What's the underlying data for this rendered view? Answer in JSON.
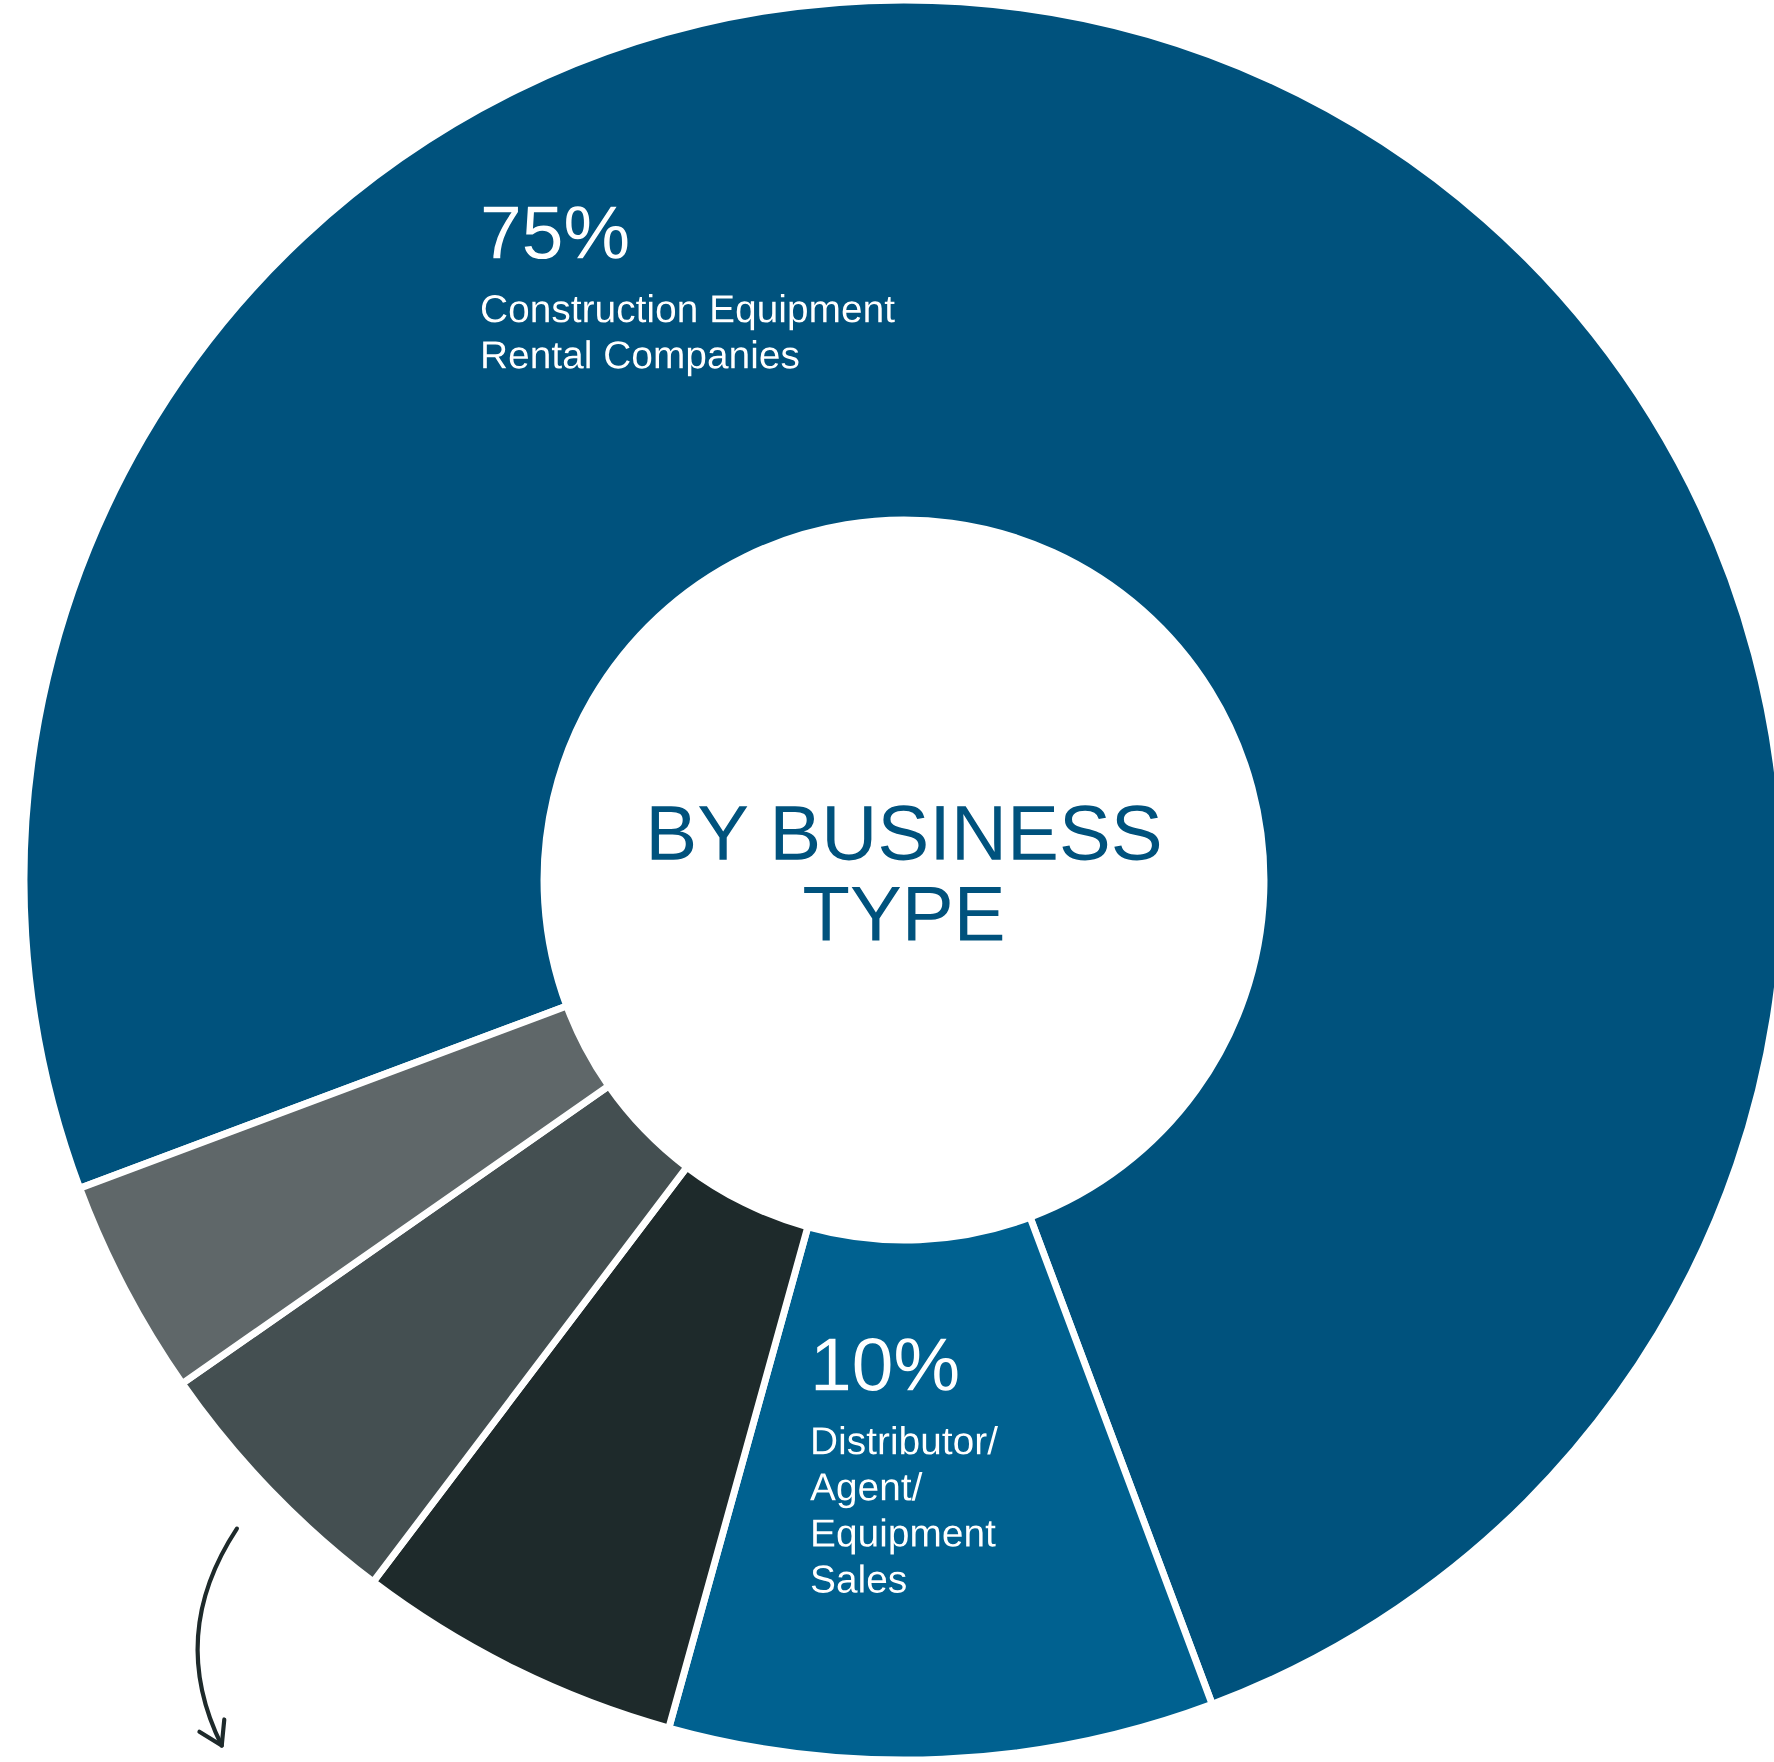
{
  "chart_data": {
    "type": "donut",
    "title": "BY BUSINESS\nTYPE",
    "categories": [
      "Construction Equipment\nRental Companies",
      "Distributor/\nAgent/\nEquipment\nSales",
      null,
      null,
      null
    ],
    "values": [
      75,
      10,
      6,
      5,
      4
    ],
    "colors": [
      "#00527d",
      "#006190",
      "#1e2a2b",
      "#444f51",
      "#5f6769"
    ],
    "value_labels": [
      "75%",
      "10%",
      null,
      null,
      null
    ],
    "legend": false
  }
}
